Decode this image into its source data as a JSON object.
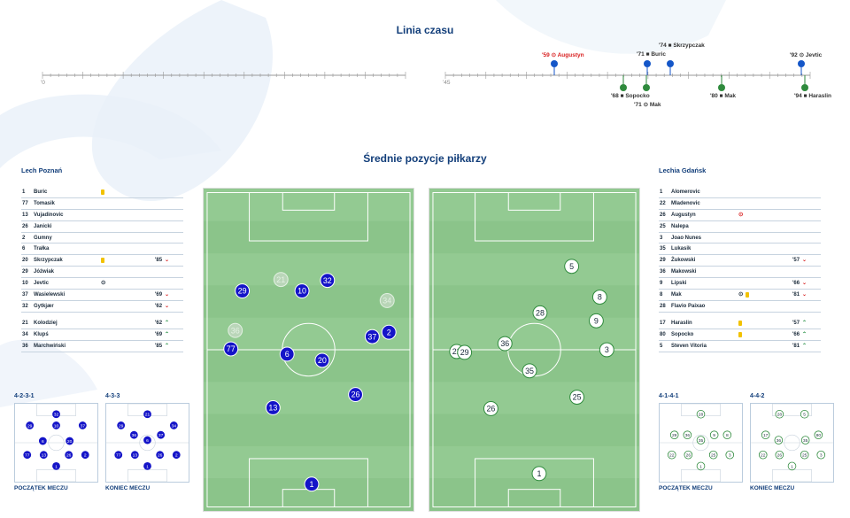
{
  "timeline": {
    "title": "Linia czasu",
    "start_first": "'0",
    "start_second": "'45",
    "events_top": [
      {
        "label": "'59 ⊙ Augustyn",
        "red": true
      },
      {
        "label": "'74 ■ Skrzypczak",
        "red": false
      },
      {
        "label": "'71 ■ Buric",
        "red": false
      },
      {
        "label": "'92 ⊙ Jevtic",
        "red": false
      }
    ],
    "events_bottom": [
      {
        "label": "'68 ■ Sopocko"
      },
      {
        "label": "'71 ⊙ Mak"
      },
      {
        "label": "'80 ■ Mak"
      },
      {
        "label": "'94 ■ Haraslin"
      }
    ]
  },
  "positions_title": "Średnie pozycje piłkarzy",
  "home": {
    "name": "Lech Poznań",
    "players": [
      {
        "num": "1",
        "name": "Buric",
        "icon": "yellow",
        "min": "",
        "arrow": ""
      },
      {
        "num": "77",
        "name": "Tomasik",
        "icon": "",
        "min": "",
        "arrow": ""
      },
      {
        "num": "13",
        "name": "Vujadinovic",
        "icon": "",
        "min": "",
        "arrow": ""
      },
      {
        "num": "26",
        "name": "Janicki",
        "icon": "",
        "min": "",
        "arrow": ""
      },
      {
        "num": "2",
        "name": "Gumny",
        "icon": "",
        "min": "",
        "arrow": ""
      },
      {
        "num": "6",
        "name": "Trałka",
        "icon": "",
        "min": "",
        "arrow": ""
      },
      {
        "num": "20",
        "name": "Skrzypczak",
        "icon": "yellow",
        "min": "'85",
        "arrow": "down"
      },
      {
        "num": "29",
        "name": "Jóźwiak",
        "icon": "",
        "min": "",
        "arrow": ""
      },
      {
        "num": "10",
        "name": "Jevtic",
        "icon": "ball",
        "min": "",
        "arrow": ""
      },
      {
        "num": "37",
        "name": "Wasielewski",
        "icon": "",
        "min": "'69",
        "arrow": "down"
      },
      {
        "num": "32",
        "name": "Gytkjær",
        "icon": "",
        "min": "'62",
        "arrow": "down"
      }
    ],
    "subs": [
      {
        "num": "21",
        "name": "Kolodziej",
        "min": "'62",
        "arrow": "up"
      },
      {
        "num": "34",
        "name": "Klupś",
        "min": "'69",
        "arrow": "up"
      },
      {
        "num": "36",
        "name": "Marchwiński",
        "min": "'85",
        "arrow": "up"
      }
    ],
    "formation_start": "4-2-3-1",
    "formation_end": "4-3-3",
    "caption_start": "POCZĄTEK MECZU",
    "caption_end": "KONIEC MECZU",
    "pitch_markers": [
      {
        "num": "29",
        "sub": false
      },
      {
        "num": "21",
        "sub": true
      },
      {
        "num": "10",
        "sub": false
      },
      {
        "num": "32",
        "sub": false
      },
      {
        "num": "34",
        "sub": true
      },
      {
        "num": "36",
        "sub": true
      },
      {
        "num": "37",
        "sub": false
      },
      {
        "num": "2",
        "sub": false
      },
      {
        "num": "77",
        "sub": false
      },
      {
        "num": "6",
        "sub": false
      },
      {
        "num": "20",
        "sub": false
      },
      {
        "num": "26",
        "sub": false
      },
      {
        "num": "13",
        "sub": false
      },
      {
        "num": "1",
        "sub": false
      }
    ],
    "mini_start": [
      "32",
      "29",
      "10",
      "37",
      "6",
      "20",
      "77",
      "13",
      "26",
      "2",
      "1"
    ],
    "mini_end": [
      "21",
      "29",
      "34",
      "36",
      "6",
      "37",
      "77",
      "13",
      "26",
      "2",
      "1"
    ]
  },
  "away": {
    "name": "Lechia Gdańsk",
    "players": [
      {
        "num": "1",
        "name": "Alomerovic",
        "icon": "",
        "min": "",
        "arrow": ""
      },
      {
        "num": "22",
        "name": "Mladenovic",
        "icon": "",
        "min": "",
        "arrow": ""
      },
      {
        "num": "26",
        "name": "Augustyn",
        "icon": "ballred",
        "min": "",
        "arrow": ""
      },
      {
        "num": "25",
        "name": "Nalepa",
        "icon": "",
        "min": "",
        "arrow": ""
      },
      {
        "num": "3",
        "name": "Joao Nunes",
        "icon": "",
        "min": "",
        "arrow": ""
      },
      {
        "num": "35",
        "name": "Lukasik",
        "icon": "",
        "min": "",
        "arrow": ""
      },
      {
        "num": "29",
        "name": "Żukowski",
        "icon": "",
        "min": "'57",
        "arrow": "down"
      },
      {
        "num": "36",
        "name": "Makowski",
        "icon": "",
        "min": "",
        "arrow": ""
      },
      {
        "num": "9",
        "name": "Lipski",
        "icon": "",
        "min": "'66",
        "arrow": "down"
      },
      {
        "num": "8",
        "name": "Mak",
        "icon": "ballyellow",
        "min": "'81",
        "arrow": "down"
      },
      {
        "num": "28",
        "name": "Flavio Paixao",
        "icon": "",
        "min": "",
        "arrow": ""
      }
    ],
    "subs": [
      {
        "num": "17",
        "name": "Haraslin",
        "icon": "yellow",
        "min": "'57",
        "arrow": "up"
      },
      {
        "num": "80",
        "name": "Sopocko",
        "icon": "yellow",
        "min": "'66",
        "arrow": "up"
      },
      {
        "num": "5",
        "name": "Steven Vitoria",
        "icon": "",
        "min": "'81",
        "arrow": "up"
      }
    ],
    "formation_start": "4-1-4-1",
    "formation_end": "4-4-2",
    "caption_start": "POCZĄTEK MECZU",
    "caption_end": "KONIEC MECZU",
    "pitch_markers": [
      {
        "num": "5"
      },
      {
        "num": "8"
      },
      {
        "num": "28"
      },
      {
        "num": "9"
      },
      {
        "num": "36"
      },
      {
        "num": "22"
      },
      {
        "num": "29"
      },
      {
        "num": "3"
      },
      {
        "num": "35"
      },
      {
        "num": "26"
      },
      {
        "num": "25"
      },
      {
        "num": "1"
      }
    ],
    "mini_start": [
      "28",
      "29",
      "36",
      "35",
      "9",
      "8",
      "22",
      "26",
      "25",
      "3",
      "1"
    ],
    "mini_end": [
      "28",
      "5",
      "17",
      "36",
      "35",
      "80",
      "22",
      "26",
      "25",
      "3",
      "1"
    ]
  },
  "colors": {
    "home": "#1414c8",
    "away": "#2e8a3c",
    "title": "#123e7a",
    "pitch": "#8bc48a"
  }
}
